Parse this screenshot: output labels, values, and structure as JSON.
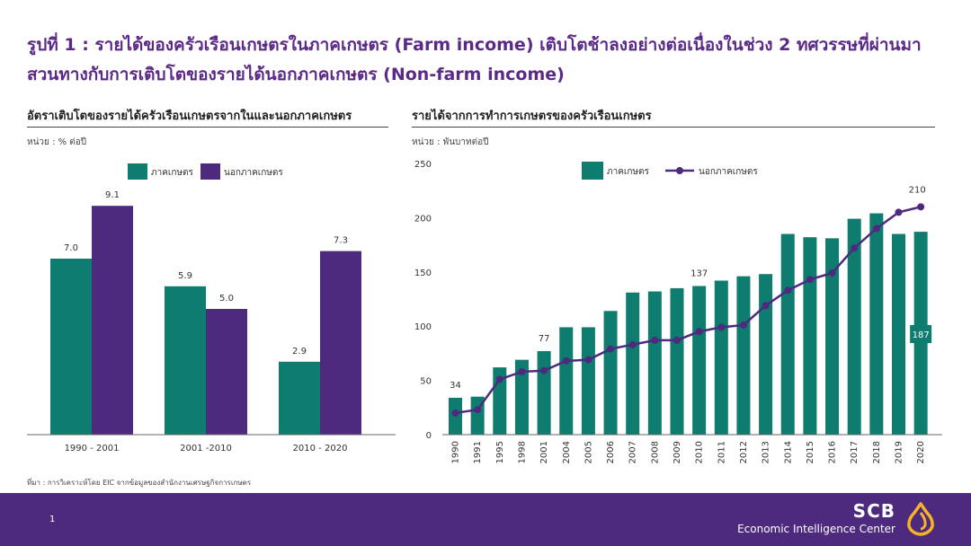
{
  "header": {
    "title": "รูปที่ 1 : รายได้ของครัวเรือนเกษตรในภาคเกษตร (Farm income) เติบโตช้าลงอย่างต่อเนื่องในช่วง 2 ทศวรรษที่ผ่านมา สวนทางกับการเติบโตของรายได้นอกภาคเกษตร (Non-farm income)"
  },
  "left": {
    "title": "อัตราเติบโตของรายได้ครัวเรือนเกษตรจากในและนอกภาคเกษตร",
    "unit": "หน่วย : % ต่อปี"
  },
  "right": {
    "title": "รายได้จากการทำการเกษตรของครัวเรือนเกษตร",
    "unit": "หน่วย : พันบาทต่อปี"
  },
  "colors": {
    "farm": "#0e7c6f",
    "nonfarm": "#4d2a7e",
    "brand": "#5b2a86",
    "gold": "#f5b326"
  },
  "chart_data": [
    {
      "type": "bar",
      "categories": [
        "1990 - 2001",
        "2001 -2010",
        "2010 - 2020"
      ],
      "series": [
        {
          "name": "ภาคเกษตร",
          "values": [
            7.0,
            5.9,
            2.9
          ]
        },
        {
          "name": "นอกภาคเกษตร",
          "values": [
            9.1,
            5.0,
            7.3
          ]
        }
      ],
      "data_labels": [
        [
          "7.0",
          "5.9",
          "2.9"
        ],
        [
          "9.1",
          "5.0",
          "7.3"
        ]
      ],
      "ylim": [
        0,
        10.5
      ],
      "grid": false,
      "legend": "top"
    },
    {
      "type": "bar+line",
      "categories": [
        "1990",
        "1991",
        "1995",
        "1998",
        "2001",
        "2004",
        "2005",
        "2006",
        "2007",
        "2008",
        "2009",
        "2010",
        "2011",
        "2012",
        "2013",
        "2014",
        "2015",
        "2016",
        "2017",
        "2018",
        "2019",
        "2020"
      ],
      "series": [
        {
          "name": "ภาคเกษตร",
          "kind": "bar",
          "values": [
            34,
            35,
            62,
            69,
            77,
            99,
            99,
            114,
            131,
            132,
            135,
            137,
            142,
            146,
            148,
            185,
            182,
            181,
            199,
            204,
            185,
            187
          ]
        },
        {
          "name": "นอกภาคเกษตร",
          "kind": "line",
          "values": [
            20,
            23,
            51,
            58,
            59,
            68,
            69,
            79,
            83,
            87,
            87,
            95,
            99,
            101,
            119,
            133,
            143,
            149,
            172,
            190,
            205,
            210
          ]
        }
      ],
      "yticks": [
        "0",
        "50",
        "100",
        "150",
        "200",
        "250"
      ],
      "ylim": [
        0,
        250
      ],
      "annotations": [
        {
          "series": "ภาคเกษตร",
          "x": "1990",
          "label": "34"
        },
        {
          "series": "ภาคเกษตร",
          "x": "2001",
          "label": "77"
        },
        {
          "series": "ภาคเกษตร",
          "x": "2010",
          "label": "137"
        },
        {
          "series": "ภาคเกษตร",
          "x": "2020",
          "label": "187"
        },
        {
          "series": "นอกภาคเกษตร",
          "x": "2020",
          "label": "210"
        }
      ],
      "grid": false,
      "legend": "top"
    }
  ],
  "footer": {
    "source": "ที่มา : การวิเคราะห์โดย EIC จากข้อมูลของสำนักงานเศรษฐกิจการเกษตร",
    "page": "1",
    "brand_name": "SCB",
    "brand_sub": "Economic Intelligence Center"
  }
}
